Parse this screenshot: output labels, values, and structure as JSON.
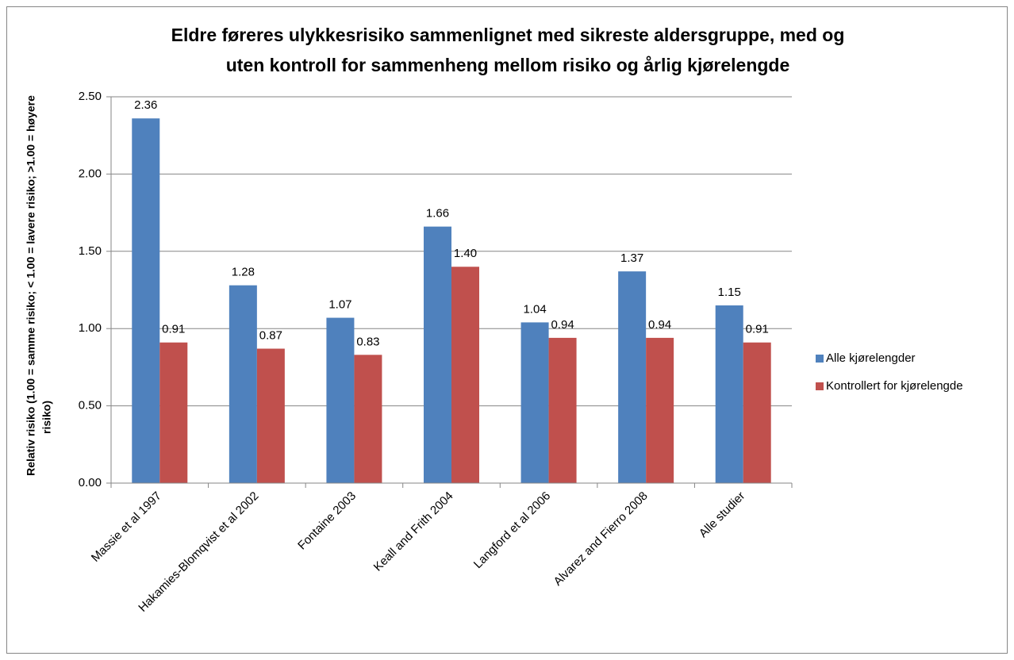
{
  "chart_data": {
    "type": "bar",
    "title": [
      "Eldre føreres ulykkesrisiko sammenlignet med sikreste aldersgruppe, med og",
      "uten kontroll for sammenheng mellom risiko og årlig kjørelengde"
    ],
    "y_label": [
      "Relativ risiko (1.00 = samme risiko; < 1.00 = lavere risiko; >1.00 = høyere",
      "risiko)"
    ],
    "categories": [
      "Massie et al 1997",
      "Hakamies-Blomqvist et al 2002",
      "Fontaine 2003",
      "Keall and Frith 2004",
      "Langford et al 2006",
      "Alvarez and Fierro 2008",
      "Alle studier"
    ],
    "series": [
      {
        "name": "Alle kjørelengder",
        "color": "#4f81bd",
        "values": [
          2.36,
          1.28,
          1.07,
          1.66,
          1.04,
          1.37,
          1.15
        ]
      },
      {
        "name": "Kontrollert for kjørelengde",
        "color": "#c0504d",
        "values": [
          0.91,
          0.87,
          0.83,
          1.4,
          0.94,
          0.94,
          0.91
        ],
        "value_labels": [
          "0.91",
          "0.87",
          "0.83",
          "1.40",
          "0.94",
          "0.94",
          "0.91"
        ]
      }
    ],
    "ylim": [
      0,
      2.5
    ],
    "yticks": [
      {
        "value": 0,
        "label": "0.00"
      },
      {
        "value": 0.5,
        "label": "0.50"
      },
      {
        "value": 1,
        "label": "1.00"
      },
      {
        "value": 1.5,
        "label": "1.50"
      },
      {
        "value": 2,
        "label": "2.00"
      },
      {
        "value": 2.5,
        "label": "2.50"
      }
    ],
    "grid": true,
    "legend": "right"
  }
}
